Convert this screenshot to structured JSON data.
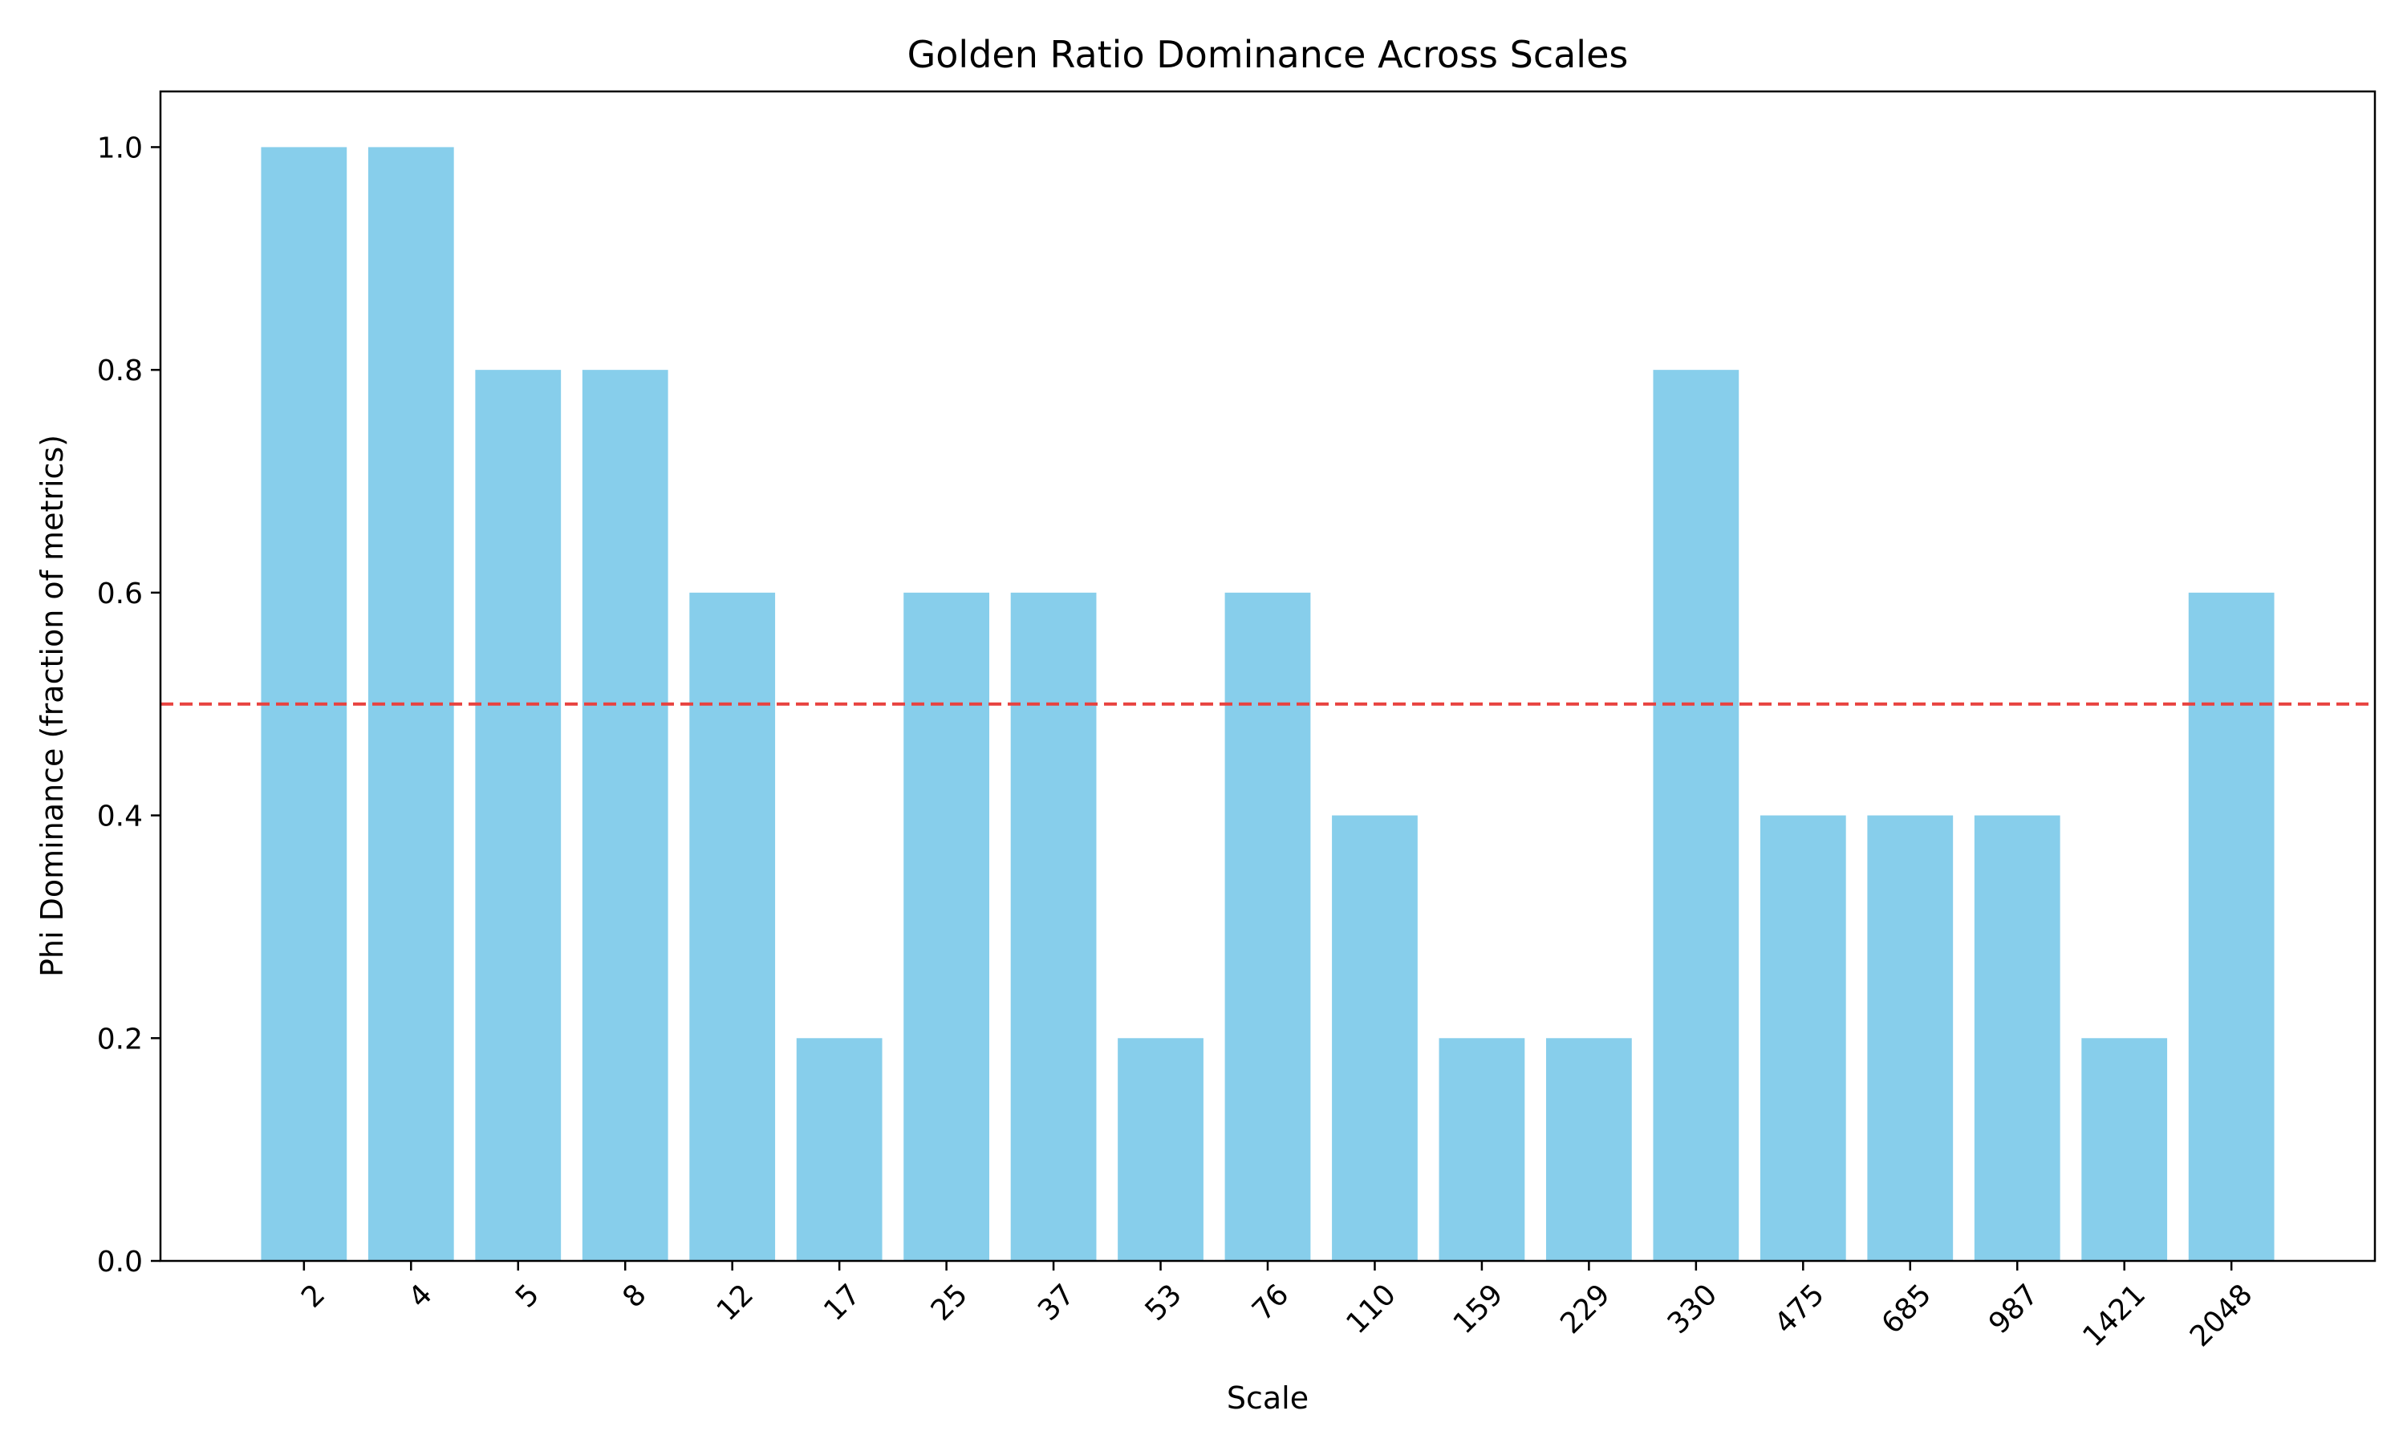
{
  "chart_data": {
    "type": "bar",
    "title": "Golden Ratio Dominance Across Scales",
    "xlabel": "Scale",
    "ylabel": "Phi Dominance (fraction of metrics)",
    "categories": [
      "2",
      "4",
      "5",
      "8",
      "12",
      "17",
      "25",
      "37",
      "53",
      "76",
      "110",
      "159",
      "229",
      "330",
      "475",
      "685",
      "987",
      "1421",
      "2048"
    ],
    "values": [
      1.0,
      1.0,
      0.8,
      0.8,
      0.6,
      0.2,
      0.6,
      0.6,
      0.2,
      0.6,
      0.4,
      0.2,
      0.2,
      0.8,
      0.4,
      0.4,
      0.4,
      0.2,
      0.6
    ],
    "ylim": [
      0,
      1.05
    ],
    "yticks": [
      0.0,
      0.2,
      0.4,
      0.6,
      0.8,
      1.0
    ],
    "ytick_labels": [
      "0.0",
      "0.2",
      "0.4",
      "0.6",
      "0.8",
      "1.0"
    ],
    "reference_line": {
      "y": 0.5,
      "style": "dashed",
      "color": "#e8423f"
    },
    "bar_color": "#87ceeb",
    "grid": false,
    "legend": false
  }
}
